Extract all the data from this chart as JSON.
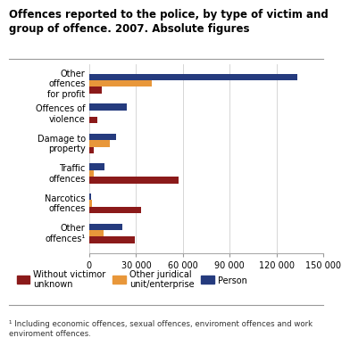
{
  "title": "Offences reported to the police, by type of victim and\ngroup of offence. 2007. Absolute figures",
  "categories": [
    "Other\noffences\nfor profit",
    "Offences of\nviolence",
    "Damage to\nproperty",
    "Traffic\noffences",
    "Narcotics\noffences",
    "Other\noffences¹"
  ],
  "series_order": [
    "Person",
    "Other juridical unit/enterprise",
    "Without victim or unknown"
  ],
  "series": {
    "Without victim or unknown": {
      "color": "#8B1A1A",
      "values": [
        8000,
        5000,
        3000,
        57000,
        33000,
        29000
      ]
    },
    "Other juridical unit/enterprise": {
      "color": "#E8973A",
      "values": [
        40000,
        0,
        13000,
        3000,
        2000,
        9000
      ]
    },
    "Person": {
      "color": "#253B7E",
      "values": [
        133000,
        24000,
        17000,
        10000,
        1000,
        21000
      ]
    }
  },
  "xlim": [
    0,
    150000
  ],
  "xticks": [
    0,
    30000,
    60000,
    90000,
    120000,
    150000
  ],
  "xticklabels": [
    "0",
    "30 000",
    "60 000",
    "90 000",
    "120 000",
    "150 000"
  ],
  "footnote": "¹ Including economic offences, sexual offences, enviroment offences and work\nenviroment offences.",
  "legend_labels": [
    "Without victimor\nunknown",
    "Other juridical\nunit/enterprise",
    "Person"
  ],
  "legend_colors": [
    "#8B1A1A",
    "#E8973A",
    "#253B7E"
  ],
  "background_color": "#ffffff",
  "grid_color": "#d0d0d0"
}
